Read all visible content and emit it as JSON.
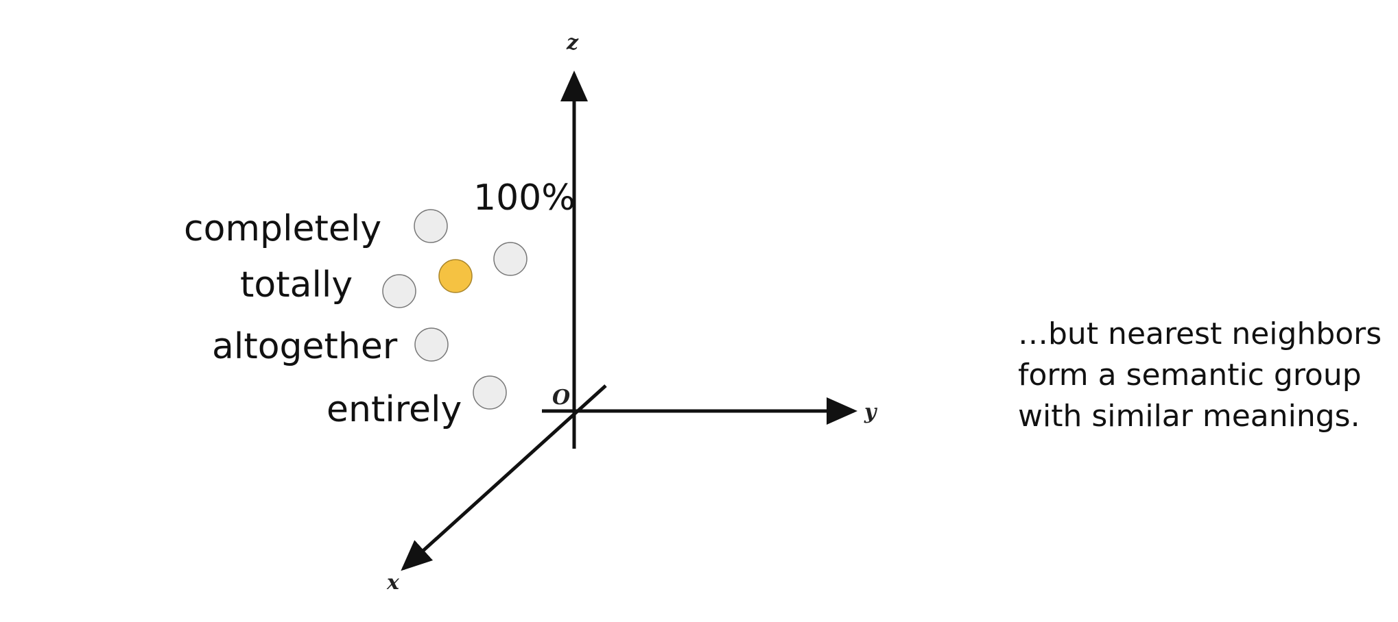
{
  "diagram": {
    "axes": {
      "z_label": "z",
      "y_label": "y",
      "x_label": "x",
      "origin_label": "O"
    },
    "percent_label": "100%",
    "words": [
      {
        "id": "completely",
        "label": "completely"
      },
      {
        "id": "totally",
        "label": "totally"
      },
      {
        "id": "altogether",
        "label": "altogether"
      },
      {
        "id": "entirely",
        "label": "entirely"
      }
    ],
    "points": [
      {
        "id": "p-completely",
        "highlighted": false
      },
      {
        "id": "p-unlabeled",
        "highlighted": false
      },
      {
        "id": "p-totally",
        "highlighted": false
      },
      {
        "id": "p-100-percent",
        "highlighted": true
      },
      {
        "id": "p-altogether",
        "highlighted": false
      },
      {
        "id": "p-entirely",
        "highlighted": false
      }
    ],
    "colors": {
      "highlight_fill": "#F5C242",
      "highlight_stroke": "#A8842A",
      "point_fill": "#EDEDED",
      "point_stroke": "#777777",
      "axis": "#111111"
    }
  },
  "caption": {
    "line1": "…but nearest neighbors",
    "line2": "form a semantic group",
    "line3": "with similar meanings."
  }
}
